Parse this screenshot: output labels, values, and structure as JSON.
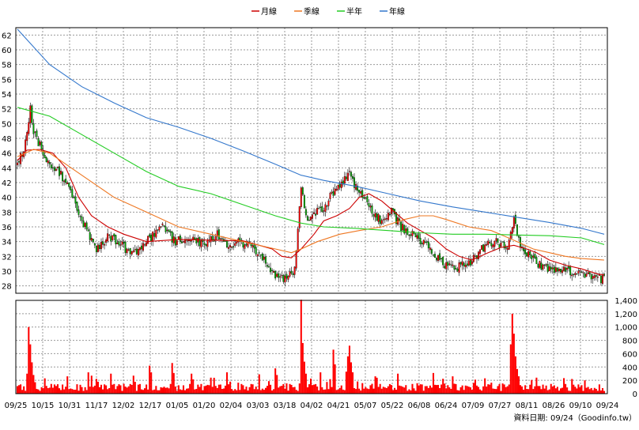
{
  "chart_data": {
    "type": "candlestick",
    "legend": [
      {
        "name": "月線",
        "color": "#cc0000"
      },
      {
        "name": "季線",
        "color": "#ee7722"
      },
      {
        "name": "半年",
        "color": "#22cc22"
      },
      {
        "name": "年線",
        "color": "#3377cc"
      }
    ],
    "price_axis": {
      "min": 27,
      "max": 63,
      "ticks": [
        28,
        30,
        32,
        34,
        36,
        38,
        40,
        42,
        44,
        46,
        48,
        50,
        52,
        54,
        56,
        58,
        60,
        62
      ]
    },
    "volume_axis": {
      "min": 0,
      "max": 1400,
      "ticks": [
        "0",
        "200",
        "400",
        "600",
        "800",
        "1,000",
        "1,200",
        "1,400"
      ]
    },
    "x_tick_labels": [
      "09/25",
      "10/15",
      "10/31",
      "11/17",
      "12/02",
      "12/17",
      "01/05",
      "01/20",
      "02/04",
      "03/03",
      "03/18",
      "04/02",
      "04/21",
      "05/07",
      "05/22",
      "06/08",
      "06/24",
      "07/09",
      "07/27",
      "08/11",
      "08/26",
      "09/10",
      "09/24"
    ],
    "footer": "資料日期: 09/24（Goodinfo.tw）",
    "up_color": "#ff0000",
    "down_color": "#00aa00",
    "volume_color": "#ff0000",
    "price_anchors": [
      {
        "i": 0,
        "p": 44.5
      },
      {
        "i": 4,
        "p": 46.5
      },
      {
        "i": 8,
        "p": 52
      },
      {
        "i": 10,
        "p": 49
      },
      {
        "i": 14,
        "p": 47
      },
      {
        "i": 18,
        "p": 44.5
      },
      {
        "i": 24,
        "p": 44
      },
      {
        "i": 30,
        "p": 42
      },
      {
        "i": 36,
        "p": 39
      },
      {
        "i": 42,
        "p": 36
      },
      {
        "i": 48,
        "p": 33
      },
      {
        "i": 56,
        "p": 34.5
      },
      {
        "i": 64,
        "p": 34
      },
      {
        "i": 70,
        "p": 32
      },
      {
        "i": 80,
        "p": 34
      },
      {
        "i": 90,
        "p": 36
      },
      {
        "i": 98,
        "p": 34
      },
      {
        "i": 108,
        "p": 34.5
      },
      {
        "i": 116,
        "p": 33.5
      },
      {
        "i": 124,
        "p": 35
      },
      {
        "i": 130,
        "p": 33.5
      },
      {
        "i": 138,
        "p": 34
      },
      {
        "i": 146,
        "p": 33
      },
      {
        "i": 152,
        "p": 32
      },
      {
        "i": 158,
        "p": 30
      },
      {
        "i": 162,
        "p": 28.8
      },
      {
        "i": 168,
        "p": 29.5
      },
      {
        "i": 172,
        "p": 30
      },
      {
        "i": 176,
        "p": 41
      },
      {
        "i": 180,
        "p": 37
      },
      {
        "i": 184,
        "p": 38
      },
      {
        "i": 190,
        "p": 38.5
      },
      {
        "i": 198,
        "p": 41.5
      },
      {
        "i": 206,
        "p": 43
      },
      {
        "i": 214,
        "p": 40
      },
      {
        "i": 220,
        "p": 38
      },
      {
        "i": 226,
        "p": 36.8
      },
      {
        "i": 232,
        "p": 38
      },
      {
        "i": 238,
        "p": 36
      },
      {
        "i": 244,
        "p": 35
      },
      {
        "i": 252,
        "p": 34
      },
      {
        "i": 258,
        "p": 32.5
      },
      {
        "i": 264,
        "p": 31
      },
      {
        "i": 272,
        "p": 30.5
      },
      {
        "i": 280,
        "p": 31
      },
      {
        "i": 288,
        "p": 33
      },
      {
        "i": 296,
        "p": 34
      },
      {
        "i": 304,
        "p": 33
      },
      {
        "i": 308,
        "p": 37
      },
      {
        "i": 312,
        "p": 33.5
      },
      {
        "i": 318,
        "p": 32
      },
      {
        "i": 326,
        "p": 30.5
      },
      {
        "i": 336,
        "p": 30.2
      },
      {
        "i": 346,
        "p": 30
      },
      {
        "i": 356,
        "p": 29.2
      },
      {
        "i": 364,
        "p": 28.8
      }
    ],
    "ma_lines": [
      {
        "name": "月線",
        "color": "#cc0000",
        "points": [
          [
            0,
            45
          ],
          [
            6,
            46.4
          ],
          [
            14,
            46.5
          ],
          [
            22,
            46
          ],
          [
            30,
            44
          ],
          [
            38,
            40
          ],
          [
            46,
            37.5
          ],
          [
            56,
            36
          ],
          [
            66,
            35
          ],
          [
            80,
            34
          ],
          [
            100,
            34.3
          ],
          [
            120,
            34.2
          ],
          [
            140,
            34.1
          ],
          [
            150,
            33.5
          ],
          [
            158,
            33
          ],
          [
            164,
            32
          ],
          [
            170,
            31.8
          ],
          [
            176,
            33
          ],
          [
            184,
            35
          ],
          [
            190,
            36.8
          ],
          [
            198,
            37.5
          ],
          [
            206,
            38.5
          ],
          [
            212,
            40
          ],
          [
            218,
            40.5
          ],
          [
            226,
            39.5
          ],
          [
            234,
            38
          ],
          [
            242,
            36.5
          ],
          [
            250,
            35.5
          ],
          [
            258,
            34.5
          ],
          [
            266,
            33
          ],
          [
            274,
            32
          ],
          [
            282,
            31.5
          ],
          [
            292,
            32.5
          ],
          [
            300,
            33.2
          ],
          [
            308,
            33.5
          ],
          [
            316,
            33
          ],
          [
            322,
            32.5
          ],
          [
            330,
            31.5
          ],
          [
            340,
            30.8
          ],
          [
            350,
            30.3
          ],
          [
            360,
            29.6
          ],
          [
            364,
            29.5
          ]
        ]
      },
      {
        "name": "季線",
        "color": "#ee7722",
        "points": [
          [
            0,
            45.5
          ],
          [
            10,
            46.5
          ],
          [
            20,
            46
          ],
          [
            30,
            44.5
          ],
          [
            40,
            43
          ],
          [
            50,
            41.5
          ],
          [
            60,
            40
          ],
          [
            80,
            38
          ],
          [
            100,
            36
          ],
          [
            120,
            35
          ],
          [
            140,
            34
          ],
          [
            160,
            33
          ],
          [
            170,
            32.5
          ],
          [
            176,
            33
          ],
          [
            186,
            34
          ],
          [
            200,
            35
          ],
          [
            212,
            35.5
          ],
          [
            226,
            36
          ],
          [
            240,
            37
          ],
          [
            250,
            37.5
          ],
          [
            258,
            37.5
          ],
          [
            266,
            37
          ],
          [
            280,
            36
          ],
          [
            294,
            35.5
          ],
          [
            310,
            34
          ],
          [
            320,
            33
          ],
          [
            330,
            32.5
          ],
          [
            340,
            32
          ],
          [
            350,
            31.7
          ],
          [
            364,
            31.5
          ]
        ]
      },
      {
        "name": "半年",
        "color": "#22cc22",
        "points": [
          [
            0,
            52.2
          ],
          [
            20,
            51
          ],
          [
            40,
            48.5
          ],
          [
            60,
            46
          ],
          [
            80,
            43.5
          ],
          [
            100,
            41.5
          ],
          [
            120,
            40.5
          ],
          [
            140,
            39
          ],
          [
            160,
            37.5
          ],
          [
            176,
            36.5
          ],
          [
            190,
            36
          ],
          [
            210,
            35.8
          ],
          [
            230,
            35.5
          ],
          [
            250,
            35.2
          ],
          [
            270,
            35
          ],
          [
            290,
            35
          ],
          [
            310,
            34.9
          ],
          [
            330,
            34.8
          ],
          [
            350,
            34.5
          ],
          [
            364,
            33.6
          ]
        ]
      },
      {
        "name": "年線",
        "color": "#3377cc",
        "points": [
          [
            0,
            62.8
          ],
          [
            20,
            58
          ],
          [
            40,
            55
          ],
          [
            60,
            52.8
          ],
          [
            80,
            50.8
          ],
          [
            100,
            49.5
          ],
          [
            120,
            48
          ],
          [
            140,
            46.3
          ],
          [
            160,
            44.5
          ],
          [
            176,
            43
          ],
          [
            190,
            42.3
          ],
          [
            210,
            41.5
          ],
          [
            230,
            40.5
          ],
          [
            250,
            39.5
          ],
          [
            270,
            38.7
          ],
          [
            290,
            38
          ],
          [
            310,
            37.3
          ],
          [
            330,
            36.6
          ],
          [
            350,
            35.8
          ],
          [
            364,
            35
          ]
        ]
      }
    ],
    "volume_spikes": [
      {
        "i": 7,
        "v": 1000
      },
      {
        "i": 8,
        "v": 740
      },
      {
        "i": 9,
        "v": 470
      },
      {
        "i": 6,
        "v": 300
      },
      {
        "i": 10,
        "v": 280
      },
      {
        "i": 31,
        "v": 260
      },
      {
        "i": 44,
        "v": 320
      },
      {
        "i": 46,
        "v": 270
      },
      {
        "i": 58,
        "v": 300
      },
      {
        "i": 72,
        "v": 270
      },
      {
        "i": 82,
        "v": 420
      },
      {
        "i": 83,
        "v": 320
      },
      {
        "i": 96,
        "v": 460
      },
      {
        "i": 97,
        "v": 310
      },
      {
        "i": 108,
        "v": 300
      },
      {
        "i": 120,
        "v": 240
      },
      {
        "i": 130,
        "v": 320
      },
      {
        "i": 150,
        "v": 290
      },
      {
        "i": 160,
        "v": 380
      },
      {
        "i": 161,
        "v": 280
      },
      {
        "i": 176,
        "v": 1410
      },
      {
        "i": 177,
        "v": 760
      },
      {
        "i": 178,
        "v": 480
      },
      {
        "i": 179,
        "v": 300
      },
      {
        "i": 188,
        "v": 320
      },
      {
        "i": 196,
        "v": 660
      },
      {
        "i": 197,
        "v": 440
      },
      {
        "i": 204,
        "v": 330
      },
      {
        "i": 205,
        "v": 560
      },
      {
        "i": 206,
        "v": 720
      },
      {
        "i": 207,
        "v": 470
      },
      {
        "i": 208,
        "v": 320
      },
      {
        "i": 222,
        "v": 260
      },
      {
        "i": 236,
        "v": 300
      },
      {
        "i": 258,
        "v": 310
      },
      {
        "i": 270,
        "v": 260
      },
      {
        "i": 284,
        "v": 210
      },
      {
        "i": 290,
        "v": 230
      },
      {
        "i": 306,
        "v": 740
      },
      {
        "i": 307,
        "v": 1200
      },
      {
        "i": 308,
        "v": 900
      },
      {
        "i": 309,
        "v": 560
      },
      {
        "i": 310,
        "v": 370
      },
      {
        "i": 311,
        "v": 260
      },
      {
        "i": 322,
        "v": 240
      },
      {
        "i": 344,
        "v": 220
      },
      {
        "i": 352,
        "v": 200
      }
    ]
  }
}
